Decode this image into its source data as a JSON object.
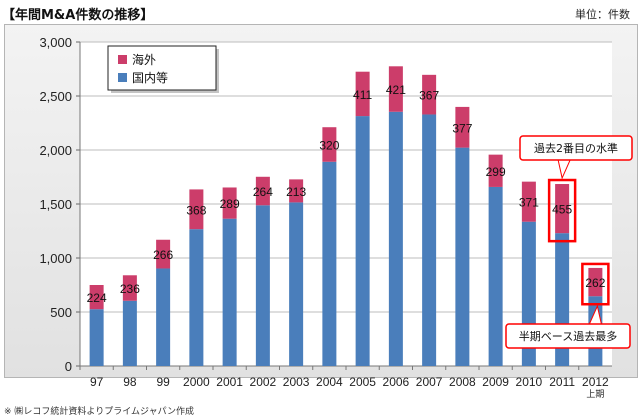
{
  "header": {
    "title": "【年間M&A件数の推移】",
    "unit": "単位：件数"
  },
  "footnote": "※ ㈱レコフ統計資料よりプライムジャパン作成",
  "chart_data": {
    "type": "bar",
    "stacked": true,
    "categories": [
      "97",
      "98",
      "99",
      "2000",
      "2001",
      "2002",
      "2003",
      "2004",
      "2005",
      "2006",
      "2007",
      "2008",
      "2009",
      "2010",
      "2011",
      "2012"
    ],
    "category_sublabel": {
      "index": 15,
      "text": "上期"
    },
    "series": [
      {
        "name": "国内等",
        "color": "#4a7ebb",
        "values": [
          526,
          604,
          903,
          1267,
          1364,
          1488,
          1515,
          1891,
          2314,
          2354,
          2329,
          2022,
          1658,
          1336,
          1230,
          646
        ]
      },
      {
        "name": "海外",
        "color": "#cc3d6a",
        "values": [
          224,
          236,
          266,
          368,
          289,
          264,
          213,
          320,
          411,
          421,
          367,
          377,
          299,
          371,
          455,
          262
        ]
      }
    ],
    "data_labels_series": "海外",
    "ylim": [
      0,
      3000
    ],
    "yticks": [
      0,
      500,
      1000,
      1500,
      2000,
      2500,
      3000
    ],
    "ytick_labels": [
      "0",
      "500",
      "1,000",
      "1,500",
      "2,000",
      "2,500",
      "3,000"
    ],
    "grid": true,
    "legend": "top-left",
    "highlights": [
      {
        "index": 14,
        "text": "過去2番目の水準"
      },
      {
        "index": 15,
        "text": "半期ベース過去最多"
      }
    ],
    "highlight_color": "#ff0000"
  }
}
